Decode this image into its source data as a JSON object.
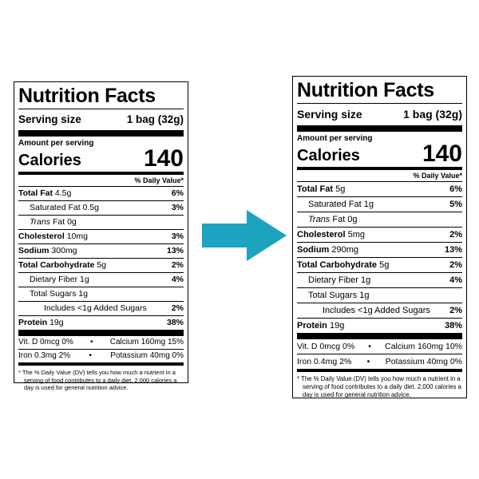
{
  "arrow": {
    "icon": "arrow-right-icon",
    "color": "#1ba3bf"
  },
  "labels": {
    "left": {
      "title": "Nutrition Facts",
      "serving_label": "Serving size",
      "serving_value": "1 bag (32g)",
      "amount_per_serving": "Amount per serving",
      "calories_label": "Calories",
      "calories_value": "140",
      "dv_header": "% Daily Value*",
      "nutrients": {
        "total_fat": {
          "label": "Total Fat",
          "amount": "4.5g",
          "pct": "6%"
        },
        "saturated_fat": {
          "label": "Saturated Fat",
          "amount": "0.5g",
          "pct": "3%"
        },
        "trans_fat": {
          "label_italic": "Trans",
          "label_rest": " Fat 0g"
        },
        "cholesterol": {
          "label": "Cholesterol",
          "amount": "10mg",
          "pct": "3%"
        },
        "sodium": {
          "label": "Sodium",
          "amount": "300mg",
          "pct": "13%"
        },
        "total_carb": {
          "label": "Total Carbohydrate",
          "amount": "5g",
          "pct": "2%"
        },
        "fiber": {
          "label": "Dietary Fiber",
          "amount": "1g",
          "pct": "4%"
        },
        "total_sugars": {
          "label": "Total Sugars 1g"
        },
        "added_sugars": {
          "label": "Includes <1g Added Sugars",
          "pct": "2%"
        },
        "protein": {
          "label": "Protein",
          "amount": "19g",
          "pct": "38%"
        }
      },
      "vitamins": {
        "vit_d": "Vit. D 0mcg 0%",
        "calcium": "Calcium 160mg 15%",
        "iron": "Iron 0.3mg 2%",
        "potassium": "Potassium 40mg 0%"
      },
      "bullet": "•",
      "footnote": "* The % Daily Value (DV) tells you how much a nutrient in a serving of food contributes to a daily diet. 2,000 calories a day is used for general nutrition advice."
    },
    "right": {
      "title": "Nutrition Facts",
      "serving_label": "Serving size",
      "serving_value": "1 bag (32g)",
      "amount_per_serving": "Amount per serving",
      "calories_label": "Calories",
      "calories_value": "140",
      "dv_header": "% Daily Value*",
      "nutrients": {
        "total_fat": {
          "label": "Total Fat",
          "amount": "5g",
          "pct": "6%"
        },
        "saturated_fat": {
          "label": "Saturated Fat",
          "amount": "1g",
          "pct": "5%"
        },
        "trans_fat": {
          "label_italic": "Trans",
          "label_rest": " Fat 0g"
        },
        "cholesterol": {
          "label": "Cholesterol",
          "amount": "5mg",
          "pct": "2%"
        },
        "sodium": {
          "label": "Sodium",
          "amount": "290mg",
          "pct": "13%"
        },
        "total_carb": {
          "label": "Total Carbohydrate",
          "amount": "5g",
          "pct": "2%"
        },
        "fiber": {
          "label": "Dietary Fiber",
          "amount": "1g",
          "pct": "4%"
        },
        "total_sugars": {
          "label": "Total Sugars 1g"
        },
        "added_sugars": {
          "label": "Includes <1g Added Sugars",
          "pct": "2%"
        },
        "protein": {
          "label": "Protein",
          "amount": "19g",
          "pct": "38%"
        }
      },
      "vitamins": {
        "vit_d": "Vit. D 0mcg 0%",
        "calcium": "Calcium 160mg 10%",
        "iron": "Iron 0.4mg 2%",
        "potassium": "Potassium 40mg 0%"
      },
      "bullet": "•",
      "footnote": "* The % Daily Value (DV) tells you how much a nutrient in a serving of food contributes to a daily diet. 2,000 calories a day is used for general nutrition advice."
    }
  }
}
